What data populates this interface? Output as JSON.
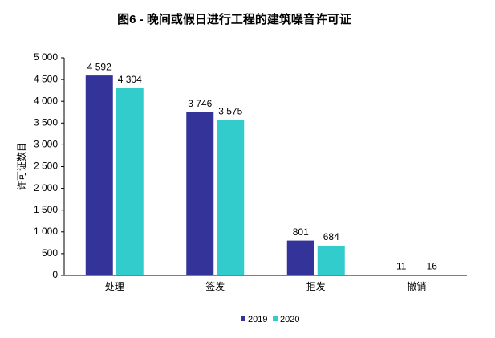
{
  "chart_data": {
    "type": "bar",
    "title": "图6 - 晚间或假日进行工程的建筑噪音许可证",
    "y_label": "许可证数目",
    "categories": [
      "处理",
      "签发",
      "拒发",
      "撤销"
    ],
    "series": [
      {
        "name": "2019",
        "color": "#333399",
        "values": [
          4592,
          3746,
          801,
          11
        ],
        "value_labels": [
          "4 592",
          "3 746",
          "801",
          "11"
        ]
      },
      {
        "name": "2020",
        "color": "#33cccc",
        "values": [
          4304,
          3575,
          684,
          16
        ],
        "value_labels": [
          "4 304",
          "3 575",
          "684",
          "16"
        ]
      }
    ],
    "ylim": [
      0,
      5000
    ],
    "yticks": [
      0,
      500,
      {
        "value": 1000,
        "label": "1 000"
      },
      {
        "value": 1500,
        "label": "1 500"
      },
      {
        "value": 2000,
        "label": "2 000"
      },
      {
        "value": 2500,
        "label": "2 500"
      },
      {
        "value": 3000,
        "label": "3 000"
      },
      {
        "value": 3500,
        "label": "3 500"
      },
      {
        "value": 4000,
        "label": "4 000"
      },
      {
        "value": 4500,
        "label": "4 500"
      },
      {
        "value": 5000,
        "label": "5 000"
      }
    ],
    "grid": false,
    "legend": "bottom"
  }
}
